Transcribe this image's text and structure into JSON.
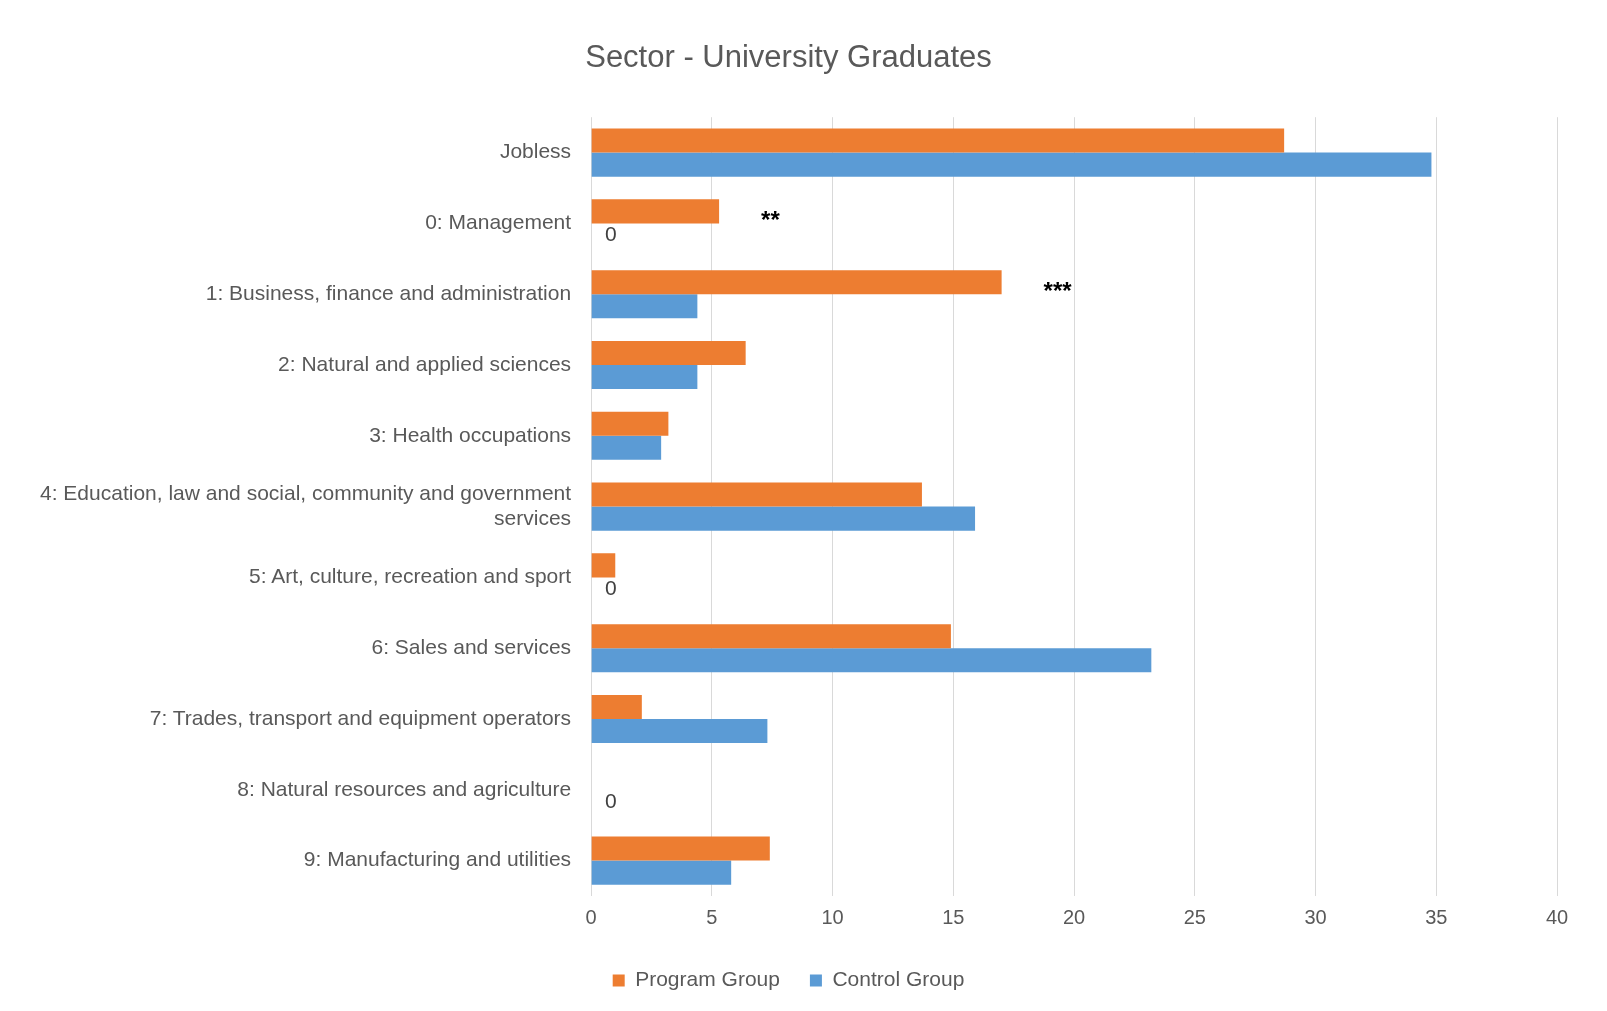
{
  "chart_data": {
    "type": "bar",
    "orientation": "horizontal",
    "title": "Sector - University Graduates",
    "categories": [
      "Jobless",
      "0: Management",
      "1: Business, finance and administration",
      "2: Natural and applied sciences",
      "3: Health occupations",
      "4: Education, law and social, community and government services",
      "5: Art, culture, recreation and sport",
      "6: Sales and services",
      "7: Trades, transport and equipment operators",
      "8: Natural resources and agriculture",
      "9: Manufacturing and utilities"
    ],
    "series": [
      {
        "name": "Program Group",
        "color": "#ed7d31",
        "values": [
          28.7,
          5.3,
          17.0,
          6.4,
          3.2,
          13.7,
          1.0,
          14.9,
          2.1,
          null,
          7.4
        ]
      },
      {
        "name": "Control Group",
        "color": "#5b9bd5",
        "values": [
          34.8,
          0,
          4.4,
          4.4,
          2.9,
          15.9,
          0,
          23.2,
          7.3,
          0,
          5.8
        ],
        "value_labels": [
          null,
          "0",
          null,
          null,
          null,
          null,
          "0",
          null,
          null,
          "0",
          null
        ]
      }
    ],
    "xlim": [
      0,
      40
    ],
    "xticks": [
      0,
      5,
      10,
      15,
      20,
      25,
      30,
      35,
      40
    ],
    "grid": "x",
    "legend": "bottom",
    "annotations": [
      "**",
      "***"
    ]
  }
}
